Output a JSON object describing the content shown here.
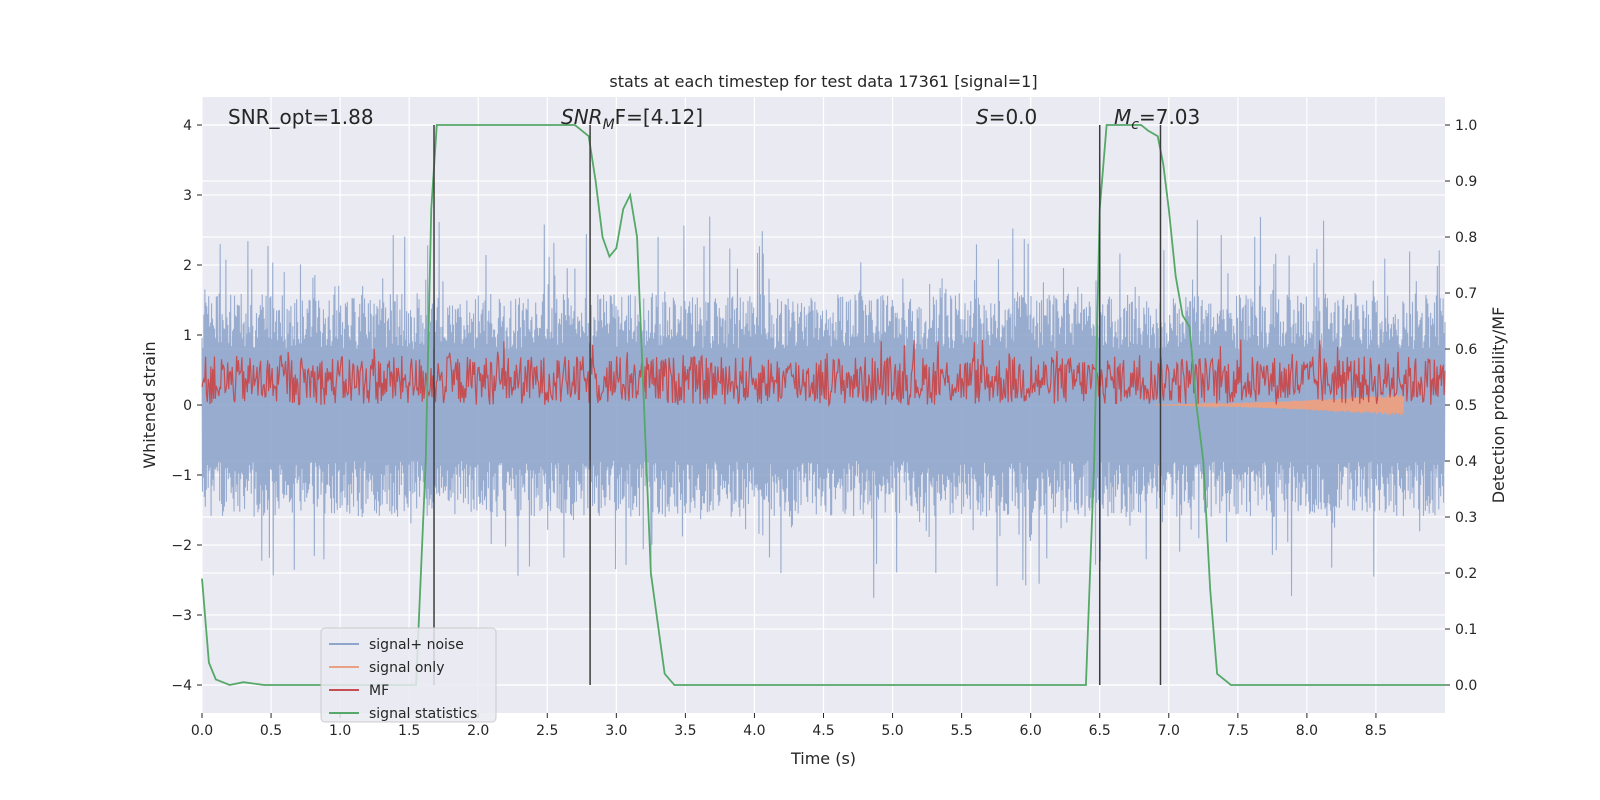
{
  "chart_data": {
    "type": "line",
    "title": "stats at each timestep for test data 17361 [signal=1]",
    "xlabel": "Time (s)",
    "ylabel_left": "Whitened strain",
    "ylabel_right": "Detection probability/MF",
    "xlim": [
      0,
      9.0
    ],
    "ylim_left": [
      -4.4,
      4.4
    ],
    "ylim_right": [
      -0.05,
      1.05
    ],
    "xticks": [
      0.0,
      0.5,
      1.0,
      1.5,
      2.0,
      2.5,
      3.0,
      3.5,
      4.0,
      4.5,
      5.0,
      5.5,
      6.0,
      6.5,
      7.0,
      7.5,
      8.0,
      8.5
    ],
    "xtick_labels": [
      "0.0",
      "0.5",
      "1.0",
      "1.5",
      "2.0",
      "2.5",
      "3.0",
      "3.5",
      "4.0",
      "4.5",
      "5.0",
      "5.5",
      "6.0",
      "6.5",
      "7.0",
      "7.5",
      "8.0",
      "8.5"
    ],
    "yticks_left": [
      -4,
      -3,
      -2,
      -1,
      0,
      1,
      2,
      3,
      4
    ],
    "ytick_labels_left": [
      "−4",
      "−3",
      "−2",
      "−1",
      "0",
      "1",
      "2",
      "3",
      "4"
    ],
    "yticks_right": [
      0.0,
      0.1,
      0.2,
      0.3,
      0.4,
      0.5,
      0.6,
      0.7,
      0.8,
      0.9,
      1.0
    ],
    "ytick_labels_right": [
      "0.0",
      "0.1",
      "0.2",
      "0.3",
      "0.4",
      "0.5",
      "0.6",
      "0.7",
      "0.8",
      "0.9",
      "1.0"
    ],
    "grid": true,
    "legend_position": "lower-left",
    "annotations": {
      "snr_opt": "SNR_opt=1.88",
      "snr_mf_sym": "SNR",
      "snr_mf_sub": "M",
      "snr_mf_rest": "F=[4.12]",
      "s_sym": "S",
      "s_rest": "=0.0",
      "mc_sym": "M",
      "mc_sub": "c",
      "mc_rest": "=7.03"
    },
    "vertical_lines": [
      1.68,
      2.81,
      6.5,
      6.94
    ],
    "series": [
      {
        "name": "signal+ noise",
        "color": "#8fa5cc",
        "kind": "noise",
        "axis": "left",
        "amplitude": 1.6,
        "peak_max": 4.0
      },
      {
        "name": "signal only",
        "color": "#e8a184",
        "kind": "chirp",
        "axis": "left",
        "t_start": 6.9,
        "t_end": 8.7,
        "amplitude_end": 0.16
      },
      {
        "name": "MF",
        "color": "#c44e52",
        "kind": "mf",
        "axis": "left",
        "base": 0.35,
        "amplitude": 0.35,
        "peak_max": 0.95
      },
      {
        "name": "signal statistics",
        "color": "#55a868",
        "axis": "right",
        "x": [
          0.0,
          0.05,
          0.1,
          0.2,
          0.3,
          0.45,
          1.0,
          1.55,
          1.62,
          1.66,
          1.7,
          1.75,
          2.0,
          2.5,
          2.7,
          2.8,
          2.85,
          2.9,
          2.95,
          3.0,
          3.05,
          3.1,
          3.15,
          3.2,
          3.25,
          3.35,
          3.42,
          4.0,
          5.0,
          6.0,
          6.4,
          6.46,
          6.5,
          6.55,
          6.6,
          6.7,
          6.8,
          6.85,
          6.92,
          6.96,
          7.0,
          7.05,
          7.1,
          7.15,
          7.2,
          7.25,
          7.3,
          7.35,
          7.45,
          7.5,
          8.0,
          9.0
        ],
        "y": [
          0.19,
          0.04,
          0.01,
          0.0,
          0.005,
          0.0,
          0.0,
          0.0,
          0.4,
          0.85,
          1.0,
          1.0,
          1.0,
          1.0,
          1.0,
          0.98,
          0.9,
          0.8,
          0.765,
          0.78,
          0.85,
          0.875,
          0.8,
          0.5,
          0.2,
          0.02,
          0.0,
          0.0,
          0.0,
          0.0,
          0.0,
          0.4,
          0.85,
          1.0,
          1.0,
          1.0,
          1.0,
          0.99,
          0.98,
          0.93,
          0.85,
          0.73,
          0.66,
          0.64,
          0.5,
          0.4,
          0.17,
          0.02,
          0.0,
          0.0,
          0.0,
          0.0
        ]
      }
    ],
    "legend": [
      "signal+ noise",
      "signal only",
      "MF",
      "signal statistics"
    ],
    "colors": {
      "background": "#ffffff",
      "plot_bg": "#eaeaf2",
      "grid": "#ffffff",
      "vertical_lines": "#3c3c3c"
    }
  }
}
